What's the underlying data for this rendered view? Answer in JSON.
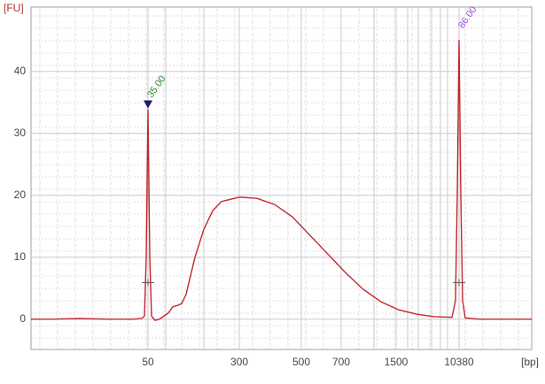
{
  "chart_data": {
    "type": "line",
    "y_label": "[FU]",
    "x_label": "[bp]",
    "xlim": [
      0,
      113
    ],
    "ylim": [
      -4.9,
      50.4
    ],
    "yticks": [
      0,
      10,
      20,
      30,
      40
    ],
    "xticks": [
      {
        "value": 26.4,
        "label": "50"
      },
      {
        "value": 47,
        "label": "300"
      },
      {
        "value": 61,
        "label": "500"
      },
      {
        "value": 70,
        "label": "700"
      },
      {
        "value": 82.4,
        "label": "1500"
      },
      {
        "value": 96.6,
        "label": "10380"
      }
    ],
    "x_gridlines": [
      30.4,
      39,
      77.4,
      85,
      87.4,
      90.4,
      92.4,
      94
    ],
    "grid": true,
    "series": [
      {
        "color": "#c0282d",
        "x": [
          0,
          5,
          11,
          17,
          23,
          25,
          25.6,
          26,
          26.4,
          26.8,
          27.2,
          28,
          29,
          31,
          32,
          33,
          34,
          35,
          36,
          37,
          39,
          41,
          43,
          47,
          51,
          55,
          59,
          63,
          67,
          71,
          75,
          79,
          83,
          87,
          91,
          95,
          95.8,
          96.2,
          96.6,
          97,
          97.4,
          98,
          101,
          107,
          113
        ],
        "values": [
          0,
          0,
          0.1,
          0,
          0,
          0.1,
          0.5,
          10,
          33.9,
          10,
          0.5,
          -0.2,
          0,
          1,
          2,
          2.2,
          2.5,
          4,
          7,
          10,
          14.5,
          17.5,
          19,
          19.7,
          19.5,
          18.5,
          16.5,
          13.5,
          10.5,
          7.5,
          4.8,
          2.8,
          1.5,
          0.8,
          0.4,
          0.3,
          3,
          20,
          45.1,
          20,
          3,
          0.2,
          0,
          0,
          0
        ]
      }
    ],
    "peak_labels": [
      {
        "label": "35.00",
        "x": 26.4,
        "y": 33.9,
        "color": "#2e8b2e"
      },
      {
        "label": "86.00",
        "x": 96.6,
        "y": 45.1,
        "color": "#9b4fd0"
      }
    ]
  }
}
